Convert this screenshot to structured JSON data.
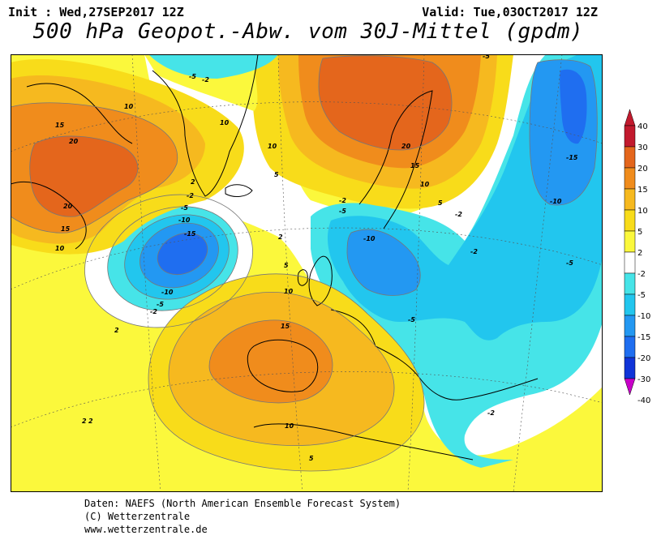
{
  "header": {
    "init": "Init : Wed,27SEP2017 12Z",
    "valid": "Valid: Tue,03OCT2017 12Z",
    "title": "500 hPa Geopot.-Abw. vom 30J-Mittel (gpdm)"
  },
  "footer": {
    "line1": "Daten: NAEFS (North American Ensemble Forecast System)",
    "line2": "(C) Wetterzentrale",
    "line3": "www.wetterzentrale.de"
  },
  "legend": {
    "levels": [
      "40",
      "30",
      "20",
      "15",
      "10",
      "5",
      "2",
      "-2",
      "-5",
      "-10",
      "-15",
      "-20",
      "-30",
      "-40"
    ],
    "colors": [
      "#c21a2e",
      "#e4661c",
      "#f08c1c",
      "#f6b91f",
      "#f8dc1a",
      "#fbf83c",
      "#ffffff",
      "#46e4e8",
      "#22c6ee",
      "#2398f2",
      "#1f6ef0",
      "#1034d8",
      "#c800c8"
    ]
  },
  "map": {
    "contour_labels": [
      {
        "text": "20"
      },
      {
        "text": "15"
      },
      {
        "text": "10"
      },
      {
        "text": "20"
      },
      {
        "text": "15"
      },
      {
        "text": "10"
      },
      {
        "text": "10"
      },
      {
        "text": "10"
      },
      {
        "text": "5"
      },
      {
        "text": "2"
      },
      {
        "text": "-5"
      },
      {
        "text": "-2"
      },
      {
        "text": "-5"
      },
      {
        "text": "-10"
      },
      {
        "text": "-15"
      },
      {
        "text": "-10"
      },
      {
        "text": "-5"
      },
      {
        "text": "-2"
      },
      {
        "text": "-2"
      },
      {
        "text": "2"
      },
      {
        "text": "5"
      },
      {
        "text": "10"
      },
      {
        "text": "15"
      },
      {
        "text": "10"
      },
      {
        "text": "5"
      },
      {
        "text": "2"
      },
      {
        "text": "2"
      },
      {
        "text": "20"
      },
      {
        "text": "15"
      },
      {
        "text": "10"
      },
      {
        "text": "5"
      },
      {
        "text": "-2"
      },
      {
        "text": "-5"
      },
      {
        "text": "-10"
      },
      {
        "text": "-5"
      },
      {
        "text": "-2"
      },
      {
        "text": "-5"
      },
      {
        "text": "-15"
      },
      {
        "text": "-10"
      },
      {
        "text": "-5"
      },
      {
        "text": "-2"
      },
      {
        "text": "-2"
      },
      {
        "text": "2"
      }
    ]
  }
}
